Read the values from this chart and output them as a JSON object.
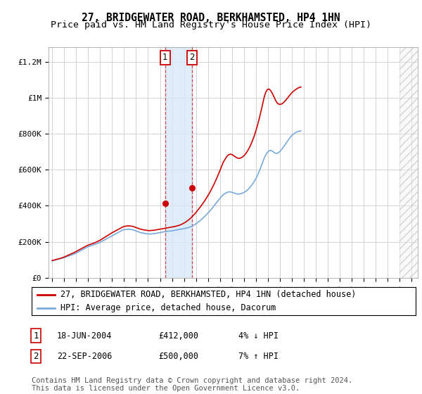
{
  "title": "27, BRIDGEWATER ROAD, BERKHAMSTED, HP4 1HN",
  "subtitle": "Price paid vs. HM Land Registry's House Price Index (HPI)",
  "ylabel_ticks": [
    "£0",
    "£200K",
    "£400K",
    "£600K",
    "£800K",
    "£1M",
    "£1.2M"
  ],
  "ytick_values": [
    0,
    200000,
    400000,
    600000,
    800000,
    1000000,
    1200000
  ],
  "ylim": [
    0,
    1280000
  ],
  "sale1_year_idx": 9.47,
  "sale1_price": 412000,
  "sale2_year_idx": 11.73,
  "sale2_price": 500000,
  "sale1_label": "1",
  "sale2_label": "2",
  "sale1_date": "18-JUN-2004",
  "sale2_date": "22-SEP-2006",
  "sale1_amount": "£412,000",
  "sale2_amount": "£500,000",
  "sale1_hpi_diff": "4% ↓ HPI",
  "sale2_hpi_diff": "7% ↑ HPI",
  "legend_line1": "27, BRIDGEWATER ROAD, BERKHAMSTED, HP4 1HN (detached house)",
  "legend_line2": "HPI: Average price, detached house, Dacorum",
  "footer": "Contains HM Land Registry data © Crown copyright and database right 2024.\nThis data is licensed under the Open Government Licence v3.0.",
  "line_color_red": "#cc0000",
  "line_color_blue": "#77aadd",
  "shade_color": "#d8e8f8",
  "grid_color": "#cccccc",
  "bg_color": "#ffffff",
  "sale_dot_color": "#cc0000",
  "box_color": "#cc0000",
  "title_fontsize": 10.5,
  "subtitle_fontsize": 9.5,
  "tick_fontsize": 8,
  "legend_fontsize": 8.5,
  "footer_fontsize": 7.5,
  "hpi_monthly": [
    95000,
    96000,
    97500,
    99000,
    100500,
    102000,
    103000,
    104500,
    106000,
    107500,
    109000,
    110000,
    112000,
    114000,
    116000,
    118000,
    120000,
    122000,
    124000,
    126000,
    128000,
    130000,
    132000,
    134000,
    137000,
    140000,
    143000,
    146000,
    149000,
    152000,
    155000,
    158000,
    161000,
    164000,
    167000,
    170000,
    172000,
    174000,
    176000,
    178000,
    180000,
    182000,
    184000,
    186000,
    188000,
    190000,
    192000,
    194000,
    197000,
    200000,
    203000,
    206000,
    209000,
    212000,
    215000,
    218000,
    221000,
    224000,
    227000,
    230000,
    233000,
    236000,
    239000,
    242000,
    245000,
    248000,
    251000,
    254000,
    257000,
    260000,
    263000,
    266000,
    267000,
    268000,
    268500,
    269000,
    269500,
    269000,
    268500,
    268000,
    267000,
    266000,
    264000,
    262000,
    260000,
    258000,
    256000,
    254000,
    252000,
    250000,
    249000,
    248000,
    247000,
    246000,
    245000,
    244000,
    243500,
    243000,
    243000,
    243500,
    244000,
    244500,
    245000,
    246000,
    247000,
    248000,
    249000,
    250000,
    251000,
    252000,
    253000,
    254000,
    255000,
    256000,
    257000,
    258000,
    258500,
    259000,
    259500,
    260000,
    261000,
    262000,
    263000,
    264000,
    265000,
    266000,
    267000,
    268000,
    269000,
    270000,
    271000,
    272000,
    273000,
    274000,
    275500,
    277000,
    278500,
    280000,
    282000,
    284000,
    287000,
    290000,
    293000,
    296000,
    300000,
    304000,
    308000,
    312000,
    317000,
    322000,
    327000,
    332000,
    337000,
    342000,
    348000,
    354000,
    360000,
    366000,
    372000,
    378000,
    385000,
    392000,
    399000,
    406000,
    413000,
    420000,
    427000,
    434000,
    441000,
    448000,
    454000,
    460000,
    464000,
    468000,
    471000,
    474000,
    476000,
    477000,
    477000,
    476000,
    475000,
    473000,
    471000,
    469000,
    467000,
    466000,
    465000,
    465000,
    466000,
    467000,
    469000,
    471000,
    474000,
    477000,
    481000,
    485000,
    490000,
    496000,
    502000,
    509000,
    516000,
    524000,
    532000,
    541000,
    551000,
    562000,
    574000,
    587000,
    601000,
    615000,
    630000,
    645000,
    660000,
    673000,
    684000,
    693000,
    700000,
    705000,
    707000,
    707000,
    705000,
    701000,
    697000,
    693000,
    691000,
    691000,
    693000,
    697000,
    702000,
    708000,
    715000,
    722000,
    730000,
    738000,
    746000,
    754000,
    762000,
    770000,
    778000,
    785000,
    790000,
    795000,
    800000,
    804000,
    807000,
    810000,
    812000,
    814000,
    815000,
    815000
  ],
  "red_monthly": [
    95500,
    97000,
    98500,
    100000,
    101500,
    103000,
    104500,
    106000,
    107500,
    109000,
    111000,
    113000,
    115000,
    117500,
    120000,
    122500,
    125000,
    127500,
    130000,
    132500,
    135000,
    137500,
    140000,
    143000,
    146000,
    149000,
    152000,
    155000,
    158000,
    161000,
    164000,
    167000,
    170000,
    173000,
    176000,
    179000,
    181000,
    183000,
    185000,
    187000,
    189000,
    191000,
    193000,
    195500,
    198000,
    200500,
    203000,
    205500,
    208500,
    212000,
    215500,
    219000,
    222500,
    226000,
    229500,
    233000,
    236500,
    240000,
    243500,
    247000,
    250000,
    253000,
    256000,
    259000,
    262000,
    265000,
    268000,
    271000,
    274000,
    277000,
    280000,
    283000,
    284500,
    286000,
    287000,
    288000,
    288500,
    288000,
    287500,
    287000,
    286000,
    285000,
    283000,
    281000,
    279000,
    277000,
    275000,
    273000,
    271000,
    269000,
    268000,
    267000,
    266000,
    265000,
    264000,
    263000,
    262500,
    262000,
    262000,
    262500,
    263000,
    263500,
    264000,
    265000,
    266000,
    267000,
    268000,
    269000,
    270000,
    271000,
    272000,
    273000,
    274000,
    275000,
    276000,
    277000,
    278000,
    279000,
    280000,
    281000,
    282000,
    283000,
    284000,
    285000,
    286500,
    288000,
    289500,
    291000,
    293000,
    295000,
    298000,
    301000,
    304000,
    307000,
    311000,
    315000,
    319000,
    323000,
    328000,
    333000,
    338500,
    344000,
    350000,
    356000,
    363000,
    370000,
    377000,
    384000,
    391000,
    398000,
    406000,
    414000,
    422000,
    430000,
    439000,
    448000,
    457000,
    466000,
    476000,
    486000,
    497000,
    508000,
    519000,
    531000,
    543000,
    556000,
    569000,
    582000,
    596000,
    610000,
    624000,
    638000,
    648000,
    658000,
    666000,
    674000,
    680000,
    684000,
    686000,
    686000,
    684000,
    681000,
    677000,
    673000,
    669000,
    666000,
    664000,
    663000,
    664000,
    666000,
    669000,
    673000,
    678000,
    684000,
    691000,
    699000,
    708000,
    718000,
    729000,
    741000,
    754000,
    768000,
    783000,
    799000,
    817000,
    836000,
    856000,
    877000,
    900000,
    923000,
    947000,
    972000,
    997000,
    1017000,
    1032000,
    1042000,
    1047000,
    1048000,
    1044000,
    1037000,
    1028000,
    1017000,
    1005000,
    993000,
    982000,
    973000,
    967000,
    964000,
    963000,
    964000,
    966000,
    970000,
    975000,
    981000,
    987000,
    994000,
    1001000,
    1008000,
    1015000,
    1022000,
    1028000,
    1033000,
    1038000,
    1042000,
    1046000,
    1050000,
    1053000,
    1056000,
    1058000,
    1059000
  ]
}
